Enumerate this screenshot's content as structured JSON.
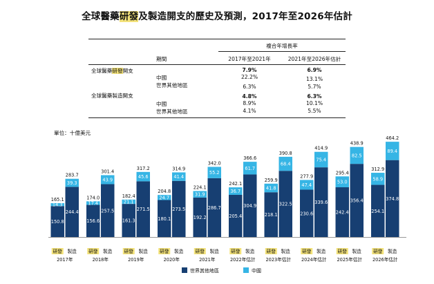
{
  "title": {
    "prefix": "全球醫藥",
    "highlight": "研發",
    "suffix": "及製造開支的歷史及預測，2017年至2026年估計"
  },
  "table": {
    "group_header": "複合年增長率",
    "period_label": "期間",
    "col1": "2017年至2021年",
    "col2": "2021年至2026年估計",
    "sections": [
      {
        "name_prefix": "全球醫藥",
        "name_highlight": "研發",
        "name_suffix": "開支",
        "total": [
          "7.9%",
          "6.9%"
        ],
        "rows": [
          {
            "label": "中國",
            "v1": "22.2%",
            "v2": "13.1%"
          },
          {
            "label": "世界其他地區",
            "v1": "6.3%",
            "v2": "5.7%"
          }
        ]
      },
      {
        "name_prefix": "全球醫藥製造開支",
        "name_highlight": "",
        "name_suffix": "",
        "total": [
          "4.8%",
          "6.3%"
        ],
        "rows": [
          {
            "label": "中國",
            "v1": "8.9%",
            "v2": "10.1%"
          },
          {
            "label": "世界其他地區",
            "v1": "4.1%",
            "v2": "5.5%"
          }
        ]
      }
    ]
  },
  "unit_label": "單位：十億美元",
  "chart_data": {
    "type": "bar",
    "stacked": true,
    "categories": [
      "2017年",
      "2018年",
      "2019年",
      "2020年",
      "2021年",
      "2022年估計",
      "2023年估計",
      "2024年估計",
      "2025年估計",
      "2026年估計"
    ],
    "sub_categories": [
      "研發",
      "製造"
    ],
    "series": [
      {
        "name": "世界其他地區",
        "color": "#173f72",
        "rd": [
          150.8,
          156.6,
          161.3,
          180.1,
          192.2,
          205.4,
          218.1,
          230.6,
          242.4,
          254.1
        ],
        "mfg": [
          244.4,
          257.5,
          271.5,
          273.5,
          286.7,
          304.9,
          322.5,
          339.6,
          356.4,
          374.8
        ]
      },
      {
        "name": "中國",
        "color": "#36b5e5",
        "rd": [
          14.3,
          17.4,
          21.1,
          24.7,
          31.9,
          36.7,
          41.8,
          47.4,
          53.0,
          58.9
        ],
        "mfg": [
          39.3,
          43.9,
          45.6,
          41.4,
          55.2,
          61.7,
          68.4,
          75.4,
          82.5,
          89.4
        ]
      }
    ],
    "totals": {
      "rd": [
        "165.1",
        "174.0",
        "182.4",
        "204.8",
        "224.1",
        "242.1",
        "259.9",
        "277.9",
        "295.4",
        "312.9"
      ],
      "mfg": [
        "283.7",
        "301.4",
        "317.2",
        "314.9",
        "342.0",
        "366.6",
        "390.8",
        "414.9",
        "438.9",
        "464.2"
      ]
    },
    "ylim": [
      0,
      470
    ],
    "legend": [
      "世界其他地區",
      "中國"
    ]
  }
}
